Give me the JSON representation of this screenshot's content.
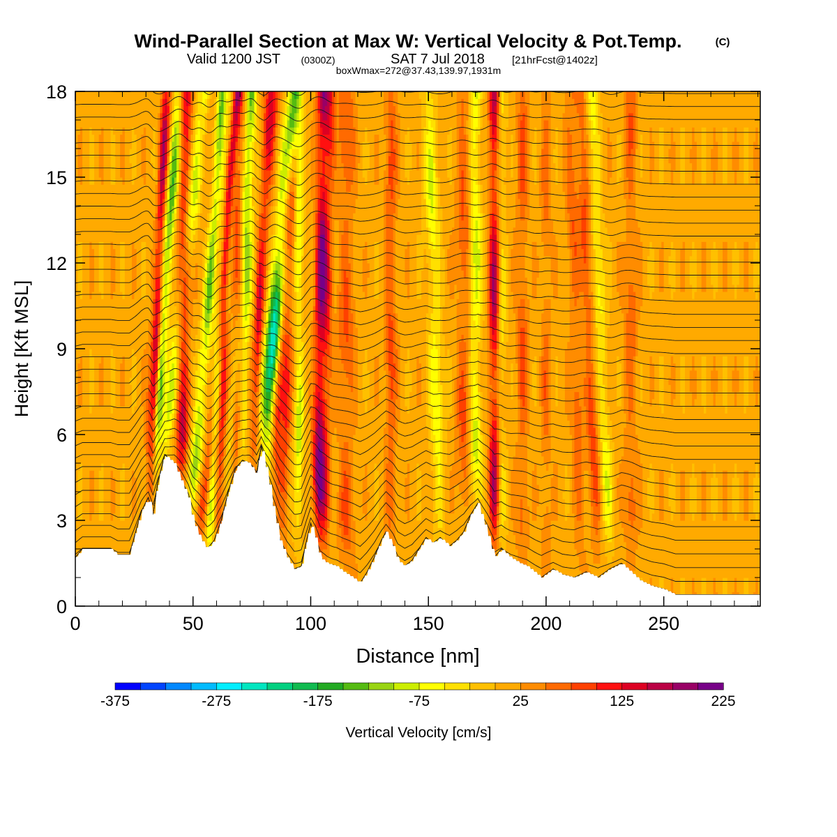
{
  "header": {
    "title": "Wind-Parallel Section at Max W: Vertical Velocity & Pot.Temp.",
    "copyright": "(C)",
    "valid_prefix": "Valid 1200 JST",
    "valid_utc": "(0300Z)",
    "valid_date": "SAT 7 Jul 2018",
    "forecast": "[21hrFcst@1402z]",
    "boxwmax": "boxWmax=272@37.43,139.97,1931m"
  },
  "colors": {
    "ground": "#ffffff",
    "contour": "#1a1a1a",
    "frame": "#000000"
  },
  "chart_data": {
    "type": "heatmap",
    "xlabel": "Distance [nm]",
    "ylabel": "Height [Kft MSL]",
    "xlim": [
      0,
      291
    ],
    "ylim": [
      0,
      18
    ],
    "x_ticks": [
      0,
      50,
      100,
      150,
      200,
      250
    ],
    "y_ticks": [
      0,
      3,
      6,
      9,
      12,
      15,
      18
    ],
    "fields": [
      "vertical velocity (color fill)",
      "potential temperature (contour lines)"
    ],
    "colorbar": {
      "label": "Vertical Velocity [cm/s]",
      "tick_labels": [
        "-375",
        "-275",
        "-175",
        "-75",
        "25",
        "125",
        "225"
      ],
      "min": -375,
      "max": 225,
      "step": 25,
      "colors": [
        "#0000ff",
        "#0044ff",
        "#0088ff",
        "#00bbff",
        "#00eeff",
        "#00e6c0",
        "#00d080",
        "#10bb50",
        "#22aa22",
        "#55bb11",
        "#99d411",
        "#ccee00",
        "#ffff00",
        "#ffe000",
        "#ffc000",
        "#ffaa00",
        "#ff8c00",
        "#ff6a00",
        "#ff4000",
        "#ff1010",
        "#dd0022",
        "#bb0044",
        "#990066",
        "#770088"
      ]
    },
    "terrain_kft": [
      [
        0,
        1.7
      ],
      [
        3,
        2.0
      ],
      [
        15,
        2.0
      ],
      [
        18,
        1.8
      ],
      [
        23,
        1.8
      ],
      [
        25,
        2.4
      ],
      [
        28,
        3.3
      ],
      [
        31,
        3.8
      ],
      [
        33,
        3.2
      ],
      [
        35,
        4.3
      ],
      [
        38,
        5.3
      ],
      [
        42,
        5.0
      ],
      [
        46,
        4.2
      ],
      [
        48,
        3.8
      ],
      [
        50,
        3.0
      ],
      [
        53,
        2.4
      ],
      [
        56,
        2.0
      ],
      [
        59,
        2.3
      ],
      [
        62,
        3.0
      ],
      [
        65,
        4.0
      ],
      [
        68,
        4.8
      ],
      [
        71,
        5.1
      ],
      [
        74,
        5.0
      ],
      [
        77,
        4.6
      ],
      [
        79,
        5.6
      ],
      [
        82,
        4.5
      ],
      [
        84,
        3.5
      ],
      [
        87,
        2.3
      ],
      [
        90,
        1.7
      ],
      [
        93,
        1.3
      ],
      [
        96,
        1.4
      ],
      [
        98,
        2.2
      ],
      [
        100,
        2.9
      ],
      [
        102,
        2.4
      ],
      [
        104,
        1.7
      ],
      [
        107,
        1.5
      ],
      [
        111,
        1.4
      ],
      [
        114,
        1.2
      ],
      [
        118,
        1.0
      ],
      [
        121,
        0.8
      ],
      [
        124,
        1.2
      ],
      [
        127,
        1.7
      ],
      [
        130,
        2.3
      ],
      [
        132,
        2.6
      ],
      [
        135,
        2.1
      ],
      [
        137,
        1.6
      ],
      [
        140,
        1.4
      ],
      [
        143,
        1.6
      ],
      [
        146,
        2.0
      ],
      [
        149,
        2.4
      ],
      [
        152,
        2.2
      ],
      [
        155,
        2.4
      ],
      [
        159,
        2.1
      ],
      [
        162,
        2.3
      ],
      [
        165,
        2.6
      ],
      [
        168,
        3.2
      ],
      [
        171,
        3.6
      ],
      [
        173,
        3.1
      ],
      [
        175,
        2.6
      ],
      [
        178,
        1.7
      ],
      [
        181,
        2.0
      ],
      [
        185,
        1.7
      ],
      [
        189,
        1.5
      ],
      [
        192,
        1.4
      ],
      [
        195,
        1.2
      ],
      [
        198,
        1.0
      ],
      [
        203,
        1.3
      ],
      [
        207,
        1.1
      ],
      [
        212,
        1.0
      ],
      [
        217,
        1.2
      ],
      [
        222,
        1.0
      ],
      [
        227,
        1.3
      ],
      [
        232,
        1.5
      ],
      [
        236,
        1.2
      ],
      [
        240,
        0.9
      ],
      [
        245,
        0.7
      ],
      [
        250,
        0.6
      ],
      [
        255,
        0.4
      ],
      [
        262,
        0.4
      ],
      [
        272,
        0.4
      ],
      [
        280,
        0.4
      ],
      [
        291,
        0.4
      ]
    ],
    "vertical_velocity_features": [
      {
        "x": 31,
        "w": 2.2,
        "amp": 160,
        "lean": 0.2
      },
      {
        "x": 34,
        "w": 2.2,
        "amp": -160,
        "lean": 0.25
      },
      {
        "x": 38,
        "w": 2.4,
        "amp": -120,
        "lean": 0.35
      },
      {
        "x": 45,
        "w": 2.6,
        "amp": 170,
        "lean": 0.05
      },
      {
        "x": 49,
        "w": 2.2,
        "amp": -150,
        "lean": 0.3
      },
      {
        "x": 53,
        "w": 2.2,
        "amp": 130,
        "lean": 0.4
      },
      {
        "x": 57,
        "w": 2.4,
        "amp": -160,
        "lean": 0.2
      },
      {
        "x": 61,
        "w": 2.0,
        "amp": 140,
        "lean": 0.1
      },
      {
        "x": 65,
        "w": 2.0,
        "amp": -80,
        "lean": 0.25
      },
      {
        "x": 68,
        "w": 2.2,
        "amp": 100,
        "lean": 0.05
      },
      {
        "x": 71,
        "w": 2.2,
        "amp": -110,
        "lean": 0.1
      },
      {
        "x": 75,
        "w": 2.2,
        "amp": 130,
        "lean": 0.2
      },
      {
        "x": 80,
        "w": 2.4,
        "amp": -300,
        "lean": 0.25
      },
      {
        "x": 84,
        "w": 2.0,
        "amp": 150,
        "lean": 0.15
      },
      {
        "x": 88,
        "w": 2.0,
        "amp": 90,
        "lean": 0.1
      },
      {
        "x": 95,
        "w": 2.0,
        "amp": -100,
        "lean": 0.0
      },
      {
        "x": 103,
        "w": 2.4,
        "amp": 200,
        "lean": 0.05
      },
      {
        "x": 106,
        "w": 2.0,
        "amp": 80,
        "lean": 0.05
      },
      {
        "x": 115,
        "w": 3.5,
        "amp": 70,
        "lean": 0.0
      },
      {
        "x": 134,
        "w": 2.4,
        "amp": 80,
        "lean": 0.0
      },
      {
        "x": 155,
        "w": 3.0,
        "amp": -90,
        "lean": -0.1
      },
      {
        "x": 165,
        "w": 3.0,
        "amp": 70,
        "lean": 0.0
      },
      {
        "x": 170,
        "w": 2.6,
        "amp": -110,
        "lean": 0.0
      },
      {
        "x": 178,
        "w": 2.2,
        "amp": 170,
        "lean": 0.0
      },
      {
        "x": 181,
        "w": 2.2,
        "amp": -60,
        "lean": 0.0
      },
      {
        "x": 190,
        "w": 2.4,
        "amp": 70,
        "lean": 0.0
      },
      {
        "x": 200,
        "w": 2.2,
        "amp": 50,
        "lean": 0.0
      },
      {
        "x": 215,
        "w": 2.4,
        "amp": 60,
        "lean": -0.1
      },
      {
        "x": 222,
        "w": 2.6,
        "amp": 80,
        "lean": -0.15
      },
      {
        "x": 227,
        "w": 2.6,
        "amp": -80,
        "lean": -0.15
      },
      {
        "x": 236,
        "w": 2.6,
        "amp": 60,
        "lean": 0.0
      }
    ]
  }
}
